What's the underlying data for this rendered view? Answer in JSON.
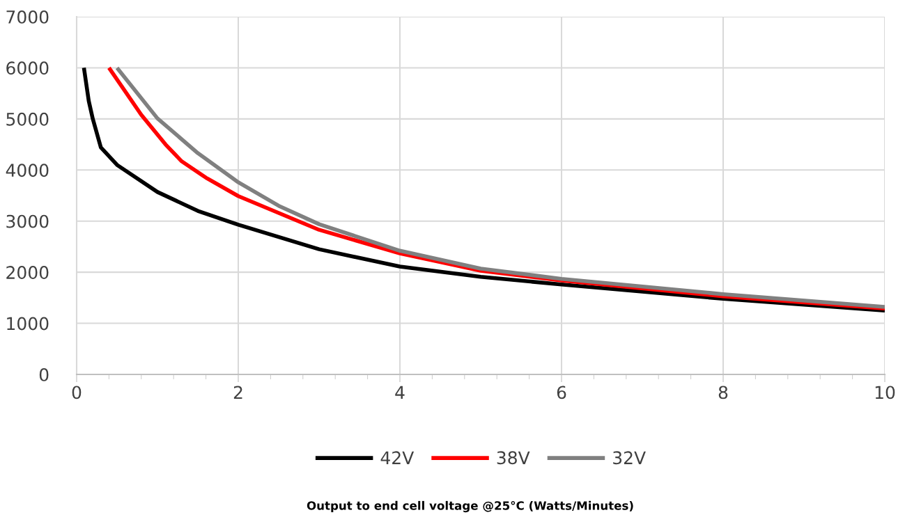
{
  "chart_data": {
    "type": "line",
    "annotations": [
      "Output to end cell voltage @25°C (Watts/Minutes)"
    ],
    "xlim": [
      0,
      10
    ],
    "xticks": [
      0,
      2,
      4,
      6,
      8,
      10
    ],
    "ylim": [
      0,
      7000
    ],
    "yticks": [
      0,
      1000,
      2000,
      3000,
      4000,
      5000,
      6000,
      7000
    ],
    "grid": true,
    "legend": "bottom",
    "marker": "none",
    "line_style": "solid",
    "series": [
      {
        "name": "42V",
        "color": "#000000",
        "x": [
          0.09,
          0.15,
          0.2,
          0.3,
          0.5,
          1,
          1.5,
          2,
          3,
          4,
          5,
          6,
          8,
          10
        ],
        "values": [
          6000,
          5350,
          5000,
          4440,
          4100,
          3570,
          3200,
          2930,
          2450,
          2110,
          1910,
          1760,
          1480,
          1250
        ]
      },
      {
        "name": "38V",
        "color": "#ff0000",
        "x": [
          0.4,
          0.8,
          1.1,
          1.3,
          1.6,
          2,
          3,
          4,
          5,
          6,
          8,
          10
        ],
        "values": [
          6000,
          5080,
          4500,
          4170,
          3850,
          3490,
          2830,
          2370,
          2030,
          1840,
          1530,
          1290
        ]
      },
      {
        "name": "32V",
        "color": "#808080",
        "x": [
          0.5,
          1,
          1.5,
          2,
          2.5,
          3,
          4,
          5,
          6,
          8,
          10
        ],
        "values": [
          6000,
          5010,
          4330,
          3760,
          3300,
          2940,
          2420,
          2070,
          1870,
          1570,
          1320
        ]
      }
    ]
  }
}
